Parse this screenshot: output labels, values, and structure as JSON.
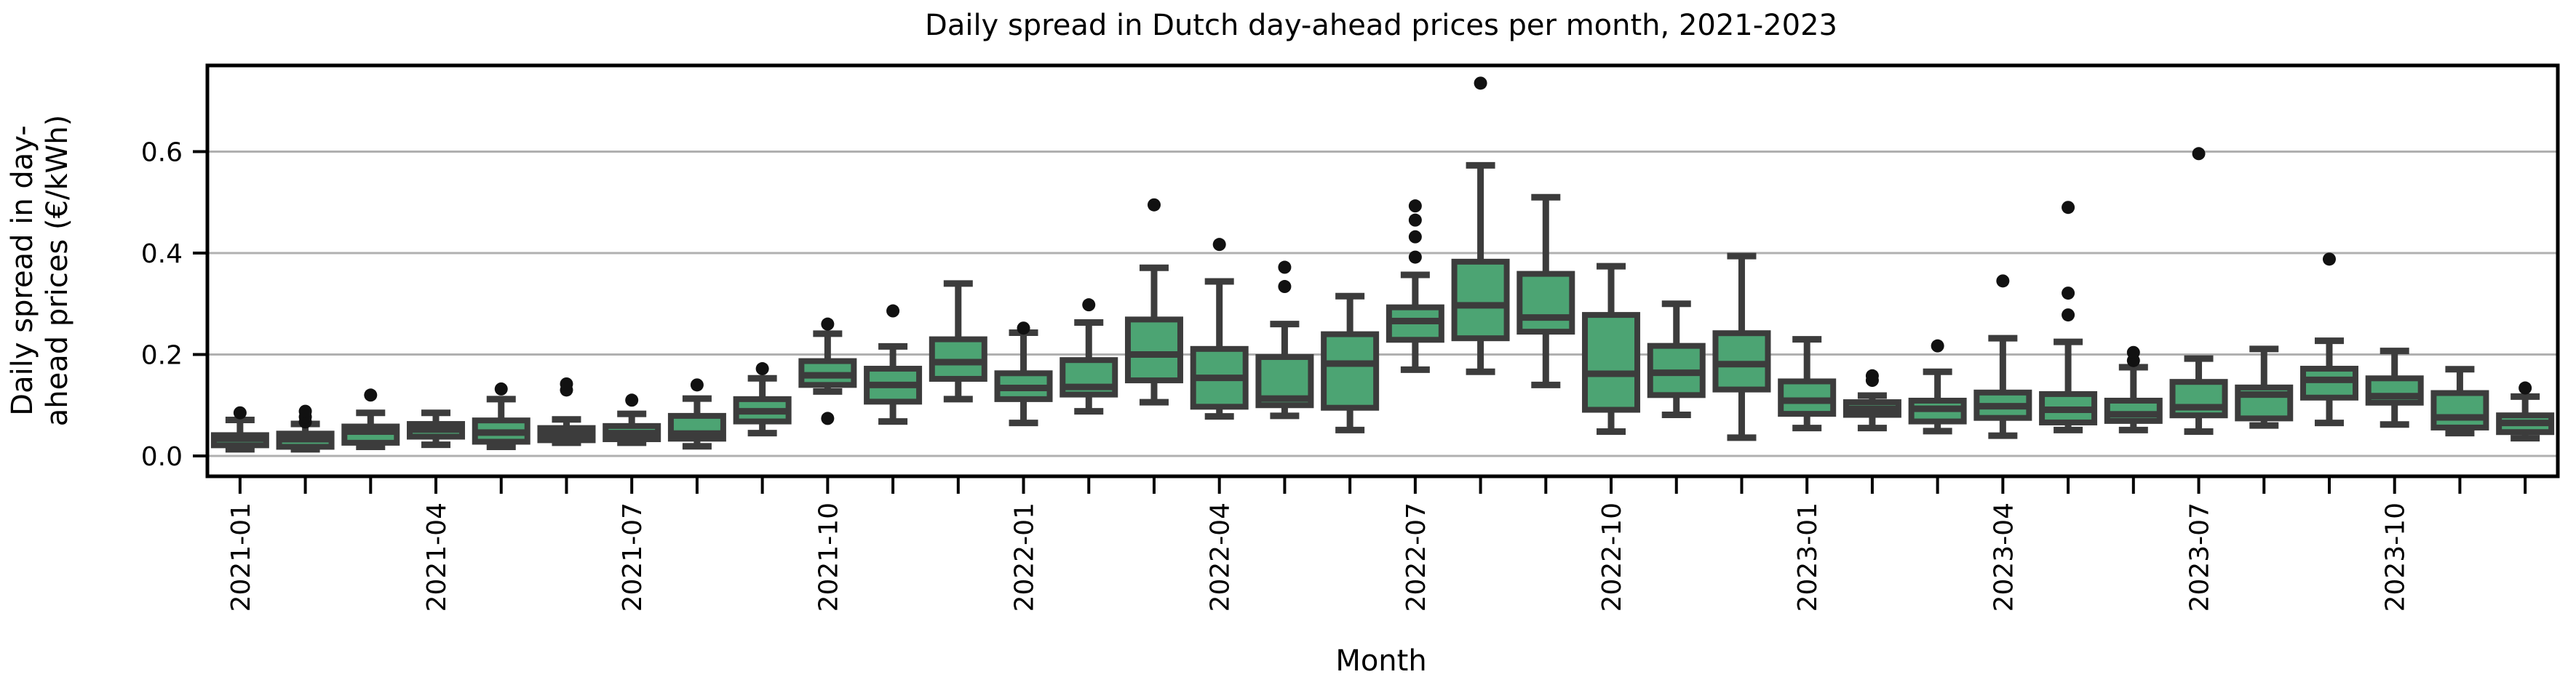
{
  "chart_data": {
    "type": "box",
    "title": "Daily spread in Dutch day-ahead prices per month, 2021-2023",
    "xlabel": "Month",
    "ylabel_line1": "Daily spread in day-",
    "ylabel_line2": "ahead prices (€/kWh)",
    "yticks": [
      "0.0",
      "0.2",
      "0.4",
      "0.6"
    ],
    "ytick_values": [
      0.0,
      0.2,
      0.4,
      0.6
    ],
    "ylim": [
      -0.04,
      0.77
    ],
    "grid": "horizontal",
    "xtick_label_every": 3,
    "legend": "none",
    "colors": {
      "box_fill": "#4ca473",
      "box_edge": "#3c3c3c",
      "whisker": "#3c3c3c",
      "median": "#3c3c3c",
      "outlier": "#111111",
      "gridline": "#b0b0b0",
      "spine": "#000000"
    },
    "categories": [
      "2021-01",
      "2021-02",
      "2021-03",
      "2021-04",
      "2021-05",
      "2021-06",
      "2021-07",
      "2021-08",
      "2021-09",
      "2021-10",
      "2021-11",
      "2021-12",
      "2022-01",
      "2022-02",
      "2022-03",
      "2022-04",
      "2022-05",
      "2022-06",
      "2022-07",
      "2022-08",
      "2022-09",
      "2022-10",
      "2022-11",
      "2022-12",
      "2023-01",
      "2023-02",
      "2023-03",
      "2023-04",
      "2023-05",
      "2023-06",
      "2023-07",
      "2023-08",
      "2023-09",
      "2023-10",
      "2023-11",
      "2023-12"
    ],
    "boxes": [
      {
        "month": "2021-01",
        "lo": 0.013,
        "q1": 0.021,
        "med": 0.034,
        "q3": 0.041,
        "hi": 0.071,
        "outliers": [
          0.085
        ]
      },
      {
        "month": "2021-02",
        "lo": 0.013,
        "q1": 0.018,
        "med": 0.033,
        "q3": 0.044,
        "hi": 0.063,
        "outliers": [
          0.067,
          0.077,
          0.088
        ]
      },
      {
        "month": "2021-03",
        "lo": 0.018,
        "q1": 0.026,
        "med": 0.048,
        "q3": 0.058,
        "hi": 0.085,
        "outliers": [
          0.12
        ]
      },
      {
        "month": "2021-04",
        "lo": 0.022,
        "q1": 0.038,
        "med": 0.052,
        "q3": 0.063,
        "hi": 0.085,
        "outliers": []
      },
      {
        "month": "2021-05",
        "lo": 0.018,
        "q1": 0.028,
        "med": 0.046,
        "q3": 0.07,
        "hi": 0.112,
        "outliers": [
          0.132
        ]
      },
      {
        "month": "2021-06",
        "lo": 0.026,
        "q1": 0.031,
        "med": 0.043,
        "q3": 0.055,
        "hi": 0.072,
        "outliers": [
          0.13,
          0.142
        ]
      },
      {
        "month": "2021-07",
        "lo": 0.026,
        "q1": 0.033,
        "med": 0.045,
        "q3": 0.059,
        "hi": 0.083,
        "outliers": [
          0.11
        ]
      },
      {
        "month": "2021-08",
        "lo": 0.019,
        "q1": 0.034,
        "med": 0.044,
        "q3": 0.079,
        "hi": 0.113,
        "outliers": [
          0.14
        ]
      },
      {
        "month": "2021-09",
        "lo": 0.045,
        "q1": 0.068,
        "med": 0.088,
        "q3": 0.112,
        "hi": 0.153,
        "outliers": [
          0.172
        ]
      },
      {
        "month": "2021-10",
        "lo": 0.127,
        "q1": 0.14,
        "med": 0.159,
        "q3": 0.187,
        "hi": 0.241,
        "outliers": [
          0.074,
          0.26
        ]
      },
      {
        "month": "2021-11",
        "lo": 0.068,
        "q1": 0.107,
        "med": 0.14,
        "q3": 0.172,
        "hi": 0.216,
        "outliers": [
          0.286
        ]
      },
      {
        "month": "2021-12",
        "lo": 0.112,
        "q1": 0.152,
        "med": 0.185,
        "q3": 0.23,
        "hi": 0.34,
        "outliers": []
      },
      {
        "month": "2022-01",
        "lo": 0.065,
        "q1": 0.112,
        "med": 0.134,
        "q3": 0.163,
        "hi": 0.243,
        "outliers": [
          0.252
        ]
      },
      {
        "month": "2022-02",
        "lo": 0.088,
        "q1": 0.121,
        "med": 0.136,
        "q3": 0.189,
        "hi": 0.263,
        "outliers": [
          0.298
        ]
      },
      {
        "month": "2022-03",
        "lo": 0.106,
        "q1": 0.149,
        "med": 0.2,
        "q3": 0.269,
        "hi": 0.371,
        "outliers": [
          0.495
        ]
      },
      {
        "month": "2022-04",
        "lo": 0.078,
        "q1": 0.097,
        "med": 0.154,
        "q3": 0.211,
        "hi": 0.344,
        "outliers": [
          0.417
        ]
      },
      {
        "month": "2022-05",
        "lo": 0.079,
        "q1": 0.1,
        "med": 0.113,
        "q3": 0.195,
        "hi": 0.26,
        "outliers": [
          0.334,
          0.372
        ]
      },
      {
        "month": "2022-06",
        "lo": 0.051,
        "q1": 0.095,
        "med": 0.182,
        "q3": 0.24,
        "hi": 0.315,
        "outliers": []
      },
      {
        "month": "2022-07",
        "lo": 0.17,
        "q1": 0.229,
        "med": 0.266,
        "q3": 0.293,
        "hi": 0.357,
        "outliers": [
          0.392,
          0.432,
          0.465,
          0.493
        ]
      },
      {
        "month": "2022-08",
        "lo": 0.166,
        "q1": 0.232,
        "med": 0.297,
        "q3": 0.383,
        "hi": 0.573,
        "outliers": [
          0.735
        ]
      },
      {
        "month": "2022-09",
        "lo": 0.14,
        "q1": 0.245,
        "med": 0.273,
        "q3": 0.359,
        "hi": 0.51,
        "outliers": []
      },
      {
        "month": "2022-10",
        "lo": 0.048,
        "q1": 0.091,
        "med": 0.162,
        "q3": 0.278,
        "hi": 0.374,
        "outliers": []
      },
      {
        "month": "2022-11",
        "lo": 0.081,
        "q1": 0.12,
        "med": 0.164,
        "q3": 0.217,
        "hi": 0.3,
        "outliers": []
      },
      {
        "month": "2022-12",
        "lo": 0.036,
        "q1": 0.131,
        "med": 0.181,
        "q3": 0.242,
        "hi": 0.394,
        "outliers": []
      },
      {
        "month": "2023-01",
        "lo": 0.055,
        "q1": 0.083,
        "med": 0.109,
        "q3": 0.147,
        "hi": 0.23,
        "outliers": []
      },
      {
        "month": "2023-02",
        "lo": 0.055,
        "q1": 0.081,
        "med": 0.093,
        "q3": 0.106,
        "hi": 0.119,
        "outliers": [
          0.149,
          0.158
        ]
      },
      {
        "month": "2023-03",
        "lo": 0.049,
        "q1": 0.068,
        "med": 0.093,
        "q3": 0.109,
        "hi": 0.166,
        "outliers": [
          0.217
        ]
      },
      {
        "month": "2023-04",
        "lo": 0.04,
        "q1": 0.075,
        "med": 0.098,
        "q3": 0.125,
        "hi": 0.232,
        "outliers": [
          0.345
        ]
      },
      {
        "month": "2023-05",
        "lo": 0.051,
        "q1": 0.066,
        "med": 0.091,
        "q3": 0.122,
        "hi": 0.225,
        "outliers": [
          0.278,
          0.321,
          0.49
        ]
      },
      {
        "month": "2023-06",
        "lo": 0.051,
        "q1": 0.069,
        "med": 0.082,
        "q3": 0.109,
        "hi": 0.175,
        "outliers": [
          0.188,
          0.204
        ]
      },
      {
        "month": "2023-07",
        "lo": 0.048,
        "q1": 0.08,
        "med": 0.096,
        "q3": 0.146,
        "hi": 0.192,
        "outliers": [
          0.596
        ]
      },
      {
        "month": "2023-08",
        "lo": 0.06,
        "q1": 0.074,
        "med": 0.121,
        "q3": 0.135,
        "hi": 0.211,
        "outliers": []
      },
      {
        "month": "2023-09",
        "lo": 0.065,
        "q1": 0.115,
        "med": 0.15,
        "q3": 0.172,
        "hi": 0.227,
        "outliers": [
          0.388
        ]
      },
      {
        "month": "2023-10",
        "lo": 0.062,
        "q1": 0.105,
        "med": 0.118,
        "q3": 0.153,
        "hi": 0.207,
        "outliers": []
      },
      {
        "month": "2023-11",
        "lo": 0.045,
        "q1": 0.056,
        "med": 0.076,
        "q3": 0.124,
        "hi": 0.171,
        "outliers": []
      },
      {
        "month": "2023-12",
        "lo": 0.035,
        "q1": 0.047,
        "med": 0.065,
        "q3": 0.08,
        "hi": 0.117,
        "outliers": [
          0.134
        ]
      }
    ]
  }
}
